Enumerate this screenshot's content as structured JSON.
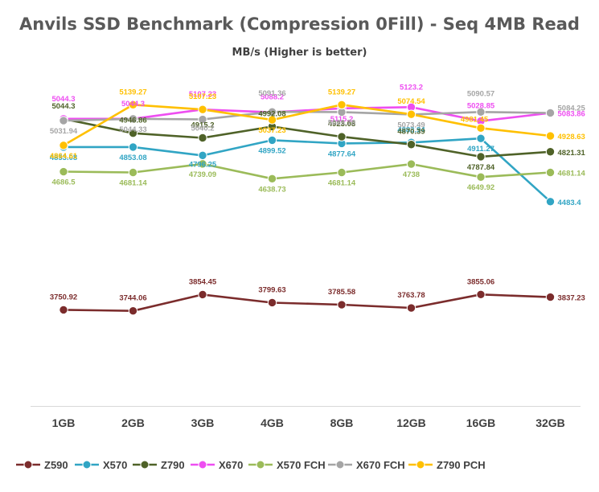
{
  "chart_data": {
    "type": "line",
    "title": "Anvils SSD Benchmark (Compression 0Fill) - Seq 4MB Read",
    "subtitle": "MB/s (Higher is better)",
    "categories": [
      "1GB",
      "2GB",
      "3GB",
      "4GB",
      "8GB",
      "12GB",
      "16GB",
      "32GB"
    ],
    "ylim": [
      3100,
      5250
    ],
    "grid": false,
    "legend": "bottom",
    "series": [
      {
        "name": "Z590",
        "color": "#7B2C2C",
        "values": [
          3750.92,
          3744.06,
          3854.45,
          3799.63,
          3785.58,
          3763.78,
          3855.06,
          3837.23
        ]
      },
      {
        "name": "X570",
        "color": "#31A5C4",
        "values": [
          4853.08,
          4853.08,
          4796.25,
          4899.52,
          4877.64,
          4883.94,
          4911.27,
          4483.4
        ]
      },
      {
        "name": "Z790",
        "color": "#4F6228",
        "values": [
          5044.3,
          4946.86,
          4915.2,
          4992.08,
          4923.08,
          4870.39,
          4787.84,
          4821.31
        ]
      },
      {
        "name": "X670",
        "color": "#EE4EF1",
        "values": [
          5044.3,
          5044.3,
          5107.23,
          5088.2,
          5115.2,
          5123.2,
          5028.85,
          5083.86
        ]
      },
      {
        "name": "X570 FCH",
        "color": "#9BBB59",
        "values": [
          4686.5,
          4681.14,
          4739.09,
          4638.73,
          4681.14,
          4738,
          4649.92,
          4681.14
        ]
      },
      {
        "name": "X670 FCH",
        "color": "#A5A5A5",
        "values": [
          5031.94,
          5044.33,
          5040.2,
          5091.36,
          5089.78,
          5073.49,
          5090.57,
          5084.25
        ]
      },
      {
        "name": "Z790 PCH",
        "color": "#FFC000",
        "values": [
          4864.61,
          5139.27,
          5107.23,
          5037.23,
          5139.27,
          5074.54,
          4981.45,
          4928.63
        ]
      }
    ]
  }
}
